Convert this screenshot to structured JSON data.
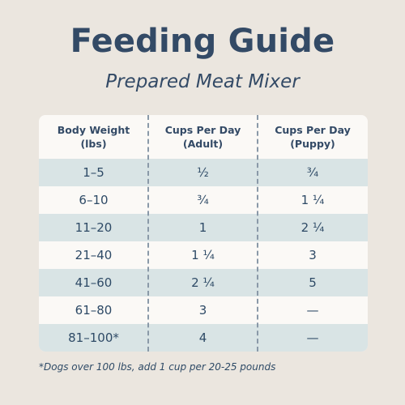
{
  "title": "Feeding Guide",
  "subtitle": "Prepared Meat Mixer",
  "table": {
    "headers": [
      {
        "line1": "Body Weight",
        "line2": "(lbs)"
      },
      {
        "line1": "Cups Per Day",
        "line2": "(Adult)"
      },
      {
        "line1": "Cups Per Day",
        "line2": "(Puppy)"
      }
    ],
    "rows": [
      {
        "weight": "1–5",
        "adult": "½",
        "puppy": "¾"
      },
      {
        "weight": "6–10",
        "adult": "¾",
        "puppy": "1 ¼"
      },
      {
        "weight": "11–20",
        "adult": "1",
        "puppy": "2 ¼"
      },
      {
        "weight": "21–40",
        "adult": "1 ¼",
        "puppy": "3"
      },
      {
        "weight": "41–60",
        "adult": "2 ¼",
        "puppy": "5"
      },
      {
        "weight": "61–80",
        "adult": "3",
        "puppy": "—"
      },
      {
        "weight": "81–100*",
        "adult": "4",
        "puppy": "—"
      }
    ]
  },
  "footnote": "*Dogs over 100 lbs, add 1 cup per 20-25 pounds",
  "colors": {
    "background": "#ebe6df",
    "text": "#334a66",
    "row_shade": "#d9e4e5",
    "table_bg": "#fbf9f6"
  }
}
